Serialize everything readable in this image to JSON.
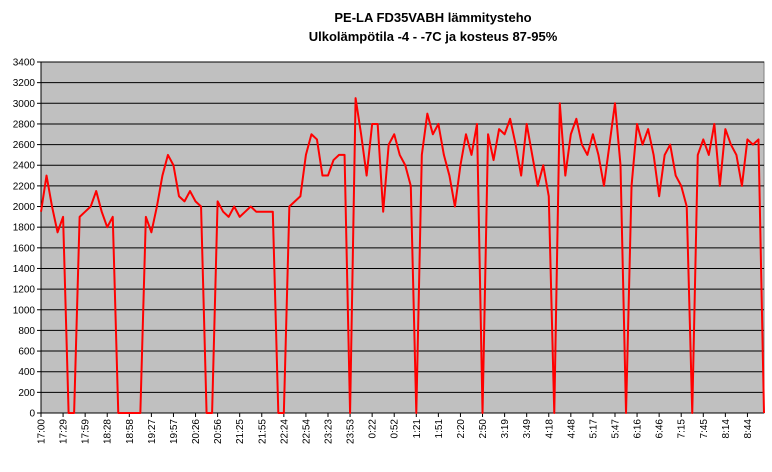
{
  "chart_data": {
    "type": "line",
    "title": "PE-LA FD35VABH lämmitysteho",
    "subtitle": "Ulkolämpötila  -4 - -7C ja kosteus 87-95%",
    "categories": [
      "17:00",
      null,
      null,
      null,
      "17:29",
      null,
      null,
      null,
      "17:59",
      null,
      null,
      null,
      "18:28",
      null,
      null,
      null,
      "18:58",
      null,
      null,
      null,
      "19:27",
      null,
      null,
      null,
      "19:57",
      null,
      null,
      null,
      "20:26",
      null,
      null,
      null,
      "20:56",
      null,
      null,
      null,
      "21:25",
      null,
      null,
      null,
      "21:55",
      null,
      null,
      null,
      "22:24",
      null,
      null,
      null,
      "22:54",
      null,
      null,
      null,
      "23:23",
      null,
      null,
      null,
      "23:53",
      null,
      null,
      null,
      "0:22",
      null,
      null,
      null,
      "0:52",
      null,
      null,
      null,
      "1:21",
      null,
      null,
      null,
      "1:51",
      null,
      null,
      null,
      "2:20",
      null,
      null,
      null,
      "2:50",
      null,
      null,
      null,
      "3:19",
      null,
      null,
      null,
      "3:49",
      null,
      null,
      null,
      "4:18",
      null,
      null,
      null,
      "4:48",
      null,
      null,
      null,
      "5:17",
      null,
      null,
      null,
      "5:47",
      null,
      null,
      null,
      "6:16",
      null,
      null,
      null,
      "6:46",
      null,
      null,
      null,
      "7:15",
      null,
      null,
      null,
      "7:45",
      null,
      null,
      null,
      "8:14",
      null,
      null,
      null,
      "8:44",
      null,
      null,
      null
    ],
    "series": [
      {
        "name": "lämmitysteho",
        "color": "#ff0000",
        "values": [
          1950,
          2300,
          2000,
          1750,
          1900,
          0,
          0,
          1900,
          1950,
          2000,
          2150,
          1950,
          1800,
          1900,
          0,
          0,
          0,
          0,
          0,
          1900,
          1750,
          2000,
          2300,
          2500,
          2400,
          2100,
          2050,
          2150,
          2050,
          2000,
          0,
          0,
          2050,
          1950,
          1900,
          2000,
          1900,
          1950,
          2000,
          1950,
          1950,
          1950,
          1950,
          0,
          0,
          2000,
          2050,
          2100,
          2500,
          2700,
          2650,
          2300,
          2300,
          2450,
          2500,
          2500,
          0,
          3050,
          2700,
          2300,
          2800,
          2800,
          1950,
          2600,
          2700,
          2500,
          2400,
          2200,
          0,
          2500,
          2900,
          2700,
          2800,
          2500,
          2300,
          2000,
          2400,
          2700,
          2500,
          2800,
          0,
          2700,
          2450,
          2750,
          2700,
          2850,
          2600,
          2300,
          2800,
          2500,
          2200,
          2400,
          2100,
          0,
          3000,
          2300,
          2700,
          2850,
          2600,
          2500,
          2700,
          2500,
          2200,
          2600,
          3000,
          2400,
          0,
          2200,
          2800,
          2600,
          2750,
          2500,
          2100,
          2500,
          2600,
          2300,
          2200,
          2000,
          0,
          2500,
          2650,
          2500,
          2800,
          2200,
          2750,
          2600,
          2500,
          2200,
          2650,
          2600,
          2650,
          0
        ]
      }
    ],
    "ylim": [
      0,
      3400
    ],
    "yticks": [
      0,
      200,
      400,
      600,
      800,
      1000,
      1200,
      1400,
      1600,
      1800,
      2000,
      2200,
      2400,
      2600,
      2800,
      3000,
      3200,
      3400
    ],
    "grid": true,
    "plot_background": "#c0c0c0"
  }
}
